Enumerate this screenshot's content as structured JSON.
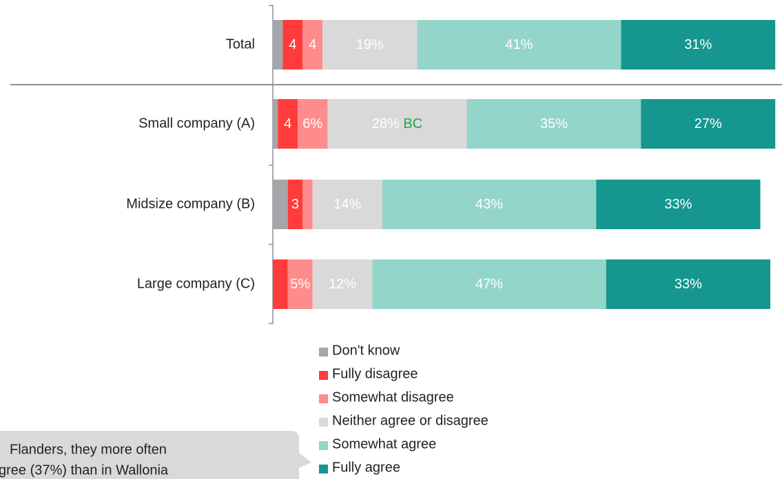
{
  "chart_data": {
    "type": "stacked_bar_horizontal",
    "categories": [
      "Total",
      "Small company (A)",
      "Midsize company (B)",
      "Large company (C)"
    ],
    "xlim": [
      0,
      100
    ],
    "legend": "bottom",
    "series": [
      {
        "name": "Don't know",
        "color": "#a6a6a8",
        "values": [
          2,
          1,
          3,
          0
        ],
        "value_labels": [
          null,
          null,
          null,
          null
        ]
      },
      {
        "name": "Fully disagree",
        "color": "#ff3b3b",
        "values": [
          4,
          4,
          3,
          3
        ],
        "value_labels": [
          "4",
          "4",
          "3",
          null
        ]
      },
      {
        "name": "Somewhat disagree",
        "color": "#ff8c8c",
        "values": [
          4,
          6,
          2,
          5
        ],
        "value_labels": [
          "4",
          "6%",
          null,
          "5%"
        ]
      },
      {
        "name": "Neither agree or disagree",
        "color": "#d9d9d9",
        "values": [
          19,
          28,
          14,
          12
        ],
        "value_labels": [
          "19%",
          "28%",
          "14%",
          "12%"
        ],
        "significance_labels": [
          null,
          "BC",
          null,
          null
        ]
      },
      {
        "name": "Somewhat agree",
        "color": "#94d5c9",
        "values": [
          41,
          35,
          43,
          47
        ],
        "value_labels": [
          "41%",
          "35%",
          "43%",
          "47%"
        ]
      },
      {
        "name": "Fully agree",
        "color": "#15968f",
        "values": [
          31,
          27,
          33,
          33
        ],
        "value_labels": [
          "31%",
          "27%",
          "33%",
          "33%"
        ]
      }
    ],
    "callout": [
      "Flanders, they more often",
      "gree (37%) than in Wallonia"
    ]
  }
}
